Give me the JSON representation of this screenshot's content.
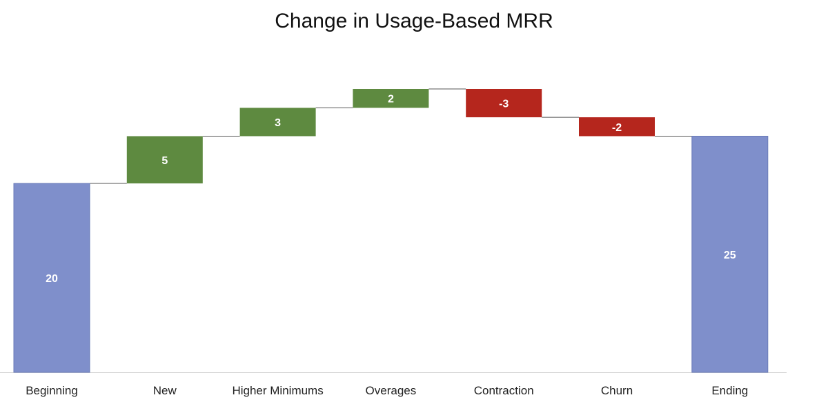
{
  "chart_data": {
    "type": "bar",
    "subtype": "waterfall",
    "title": "Change in Usage-Based MRR",
    "xlabel": "",
    "ylabel": "",
    "categories": [
      "Beginning",
      "New",
      "Higher Minimums",
      "Overages",
      "Contraction",
      "Churn",
      "Ending"
    ],
    "values": [
      20,
      5,
      3,
      2,
      -3,
      -2,
      25
    ],
    "value_labels": [
      "20",
      "5",
      "3",
      "2",
      "-3",
      "-2",
      "25"
    ],
    "kinds": [
      "total",
      "increase",
      "increase",
      "increase",
      "decrease",
      "decrease",
      "total"
    ],
    "ylim": [
      0,
      30
    ],
    "grid": false,
    "legend": "none",
    "connector_lines": true,
    "colors": {
      "total": "#7f8fcb",
      "increase": "#5e8a40",
      "decrease": "#b5261d",
      "connector": "#555555",
      "axis": "#d0d0d0"
    }
  }
}
